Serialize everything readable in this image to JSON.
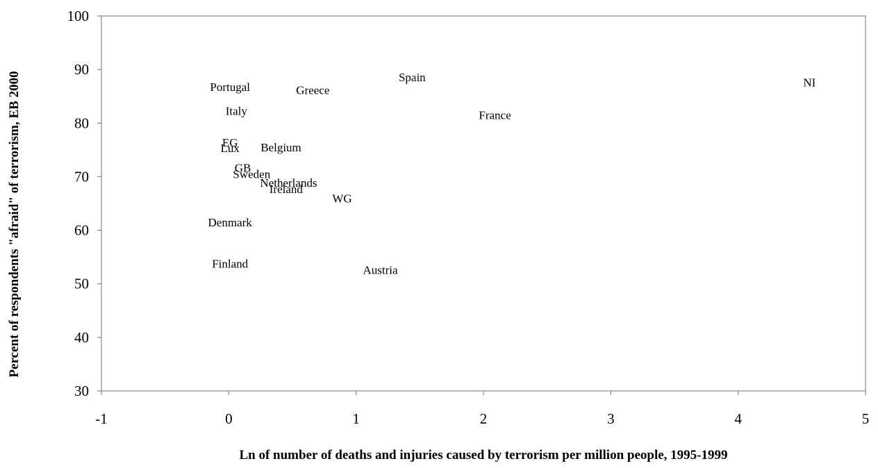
{
  "chart_data": {
    "type": "scatter",
    "title": "",
    "xlabel": "Ln of number of deaths and injuries caused by terrorism per million people, 1995-1999",
    "ylabel": "Percent of respondents \"afraid\" of terrorism, EB 2000",
    "xlim": [
      -1,
      5
    ],
    "ylim": [
      30,
      100
    ],
    "x_ticks": [
      -1,
      0,
      1,
      2,
      3,
      4,
      5
    ],
    "y_ticks": [
      30,
      40,
      50,
      60,
      70,
      80,
      90,
      100
    ],
    "grid": false,
    "legend": "none",
    "markers": "text-labels",
    "points": [
      {
        "label": "Portugal",
        "x": 0.01,
        "y": 86.8
      },
      {
        "label": "Greece",
        "x": 0.66,
        "y": 86.2
      },
      {
        "label": "Spain",
        "x": 1.44,
        "y": 88.6
      },
      {
        "label": "NI",
        "x": 4.56,
        "y": 87.6
      },
      {
        "label": "Italy",
        "x": 0.06,
        "y": 82.3
      },
      {
        "label": "France",
        "x": 2.09,
        "y": 81.5
      },
      {
        "label": "EG",
        "x": 0.01,
        "y": 76.4
      },
      {
        "label": "Lux",
        "x": 0.01,
        "y": 75.4
      },
      {
        "label": "Belgium",
        "x": 0.41,
        "y": 75.5
      },
      {
        "label": "GB",
        "x": 0.11,
        "y": 71.7
      },
      {
        "label": "Sweden",
        "x": 0.18,
        "y": 70.5
      },
      {
        "label": "Netherlands",
        "x": 0.47,
        "y": 68.9
      },
      {
        "label": "Ireland",
        "x": 0.45,
        "y": 67.7
      },
      {
        "label": "WG",
        "x": 0.89,
        "y": 66.0
      },
      {
        "label": "Denmark",
        "x": 0.01,
        "y": 61.5
      },
      {
        "label": "Finland",
        "x": 0.01,
        "y": 53.8
      },
      {
        "label": "Austria",
        "x": 1.19,
        "y": 52.6
      }
    ]
  }
}
